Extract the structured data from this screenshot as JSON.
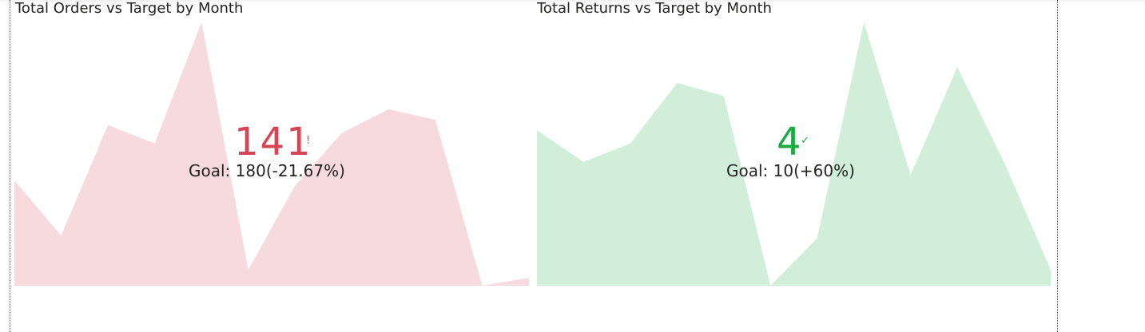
{
  "colors": {
    "negative_fill": "#f6dade",
    "negative_text": "#d64554",
    "positive_fill": "#d1eed9",
    "positive_text": "#1aab40",
    "title_text": "#252423"
  },
  "kpis": [
    {
      "title": "Total Orders vs Target by Month",
      "value": "141",
      "status_icon": "!",
      "status_icon_name": "exclamation-icon",
      "goal_label": "Goal: 180",
      "goal_delta": "(-21.67%)",
      "tone": "negative"
    },
    {
      "title": "Total Returns vs Target by Month",
      "value": "4",
      "status_icon": "✓",
      "status_icon_name": "checkmark-icon",
      "goal_label": "Goal: 10",
      "goal_delta": "(+60%)",
      "tone": "positive"
    }
  ],
  "chart_data": [
    {
      "type": "area",
      "title": "Total Orders vs Target by Month",
      "value": 141,
      "goal": 180,
      "delta_percent": -21.67,
      "ylim": [
        0,
        1
      ],
      "values": [
        0.4,
        0.19,
        0.61,
        0.54,
        1.0,
        0.06,
        0.38,
        0.58,
        0.67,
        0.63,
        0.0,
        0.03
      ]
    },
    {
      "type": "area",
      "title": "Total Returns vs Target by Month",
      "value": 4,
      "goal": 10,
      "delta_percent": 60,
      "ylim": [
        0,
        1
      ],
      "values": [
        0.59,
        0.47,
        0.54,
        0.77,
        0.72,
        0.0,
        0.18,
        1.0,
        0.42,
        0.83,
        0.47,
        0.06
      ]
    }
  ]
}
